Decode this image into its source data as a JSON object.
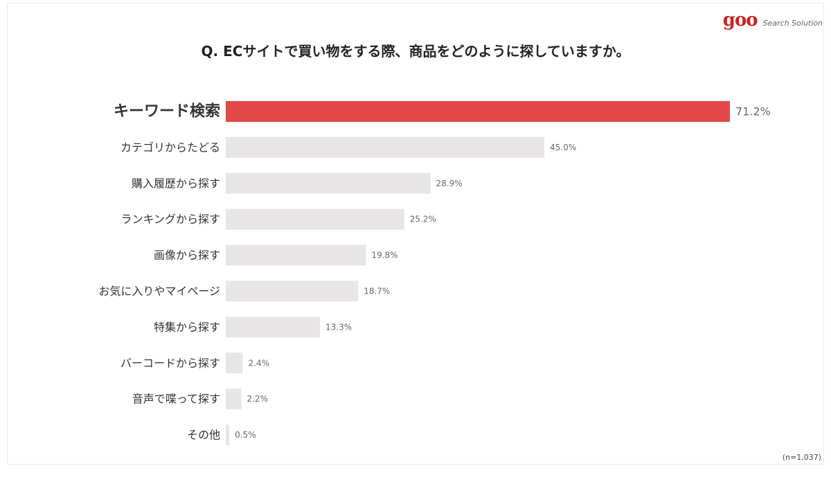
{
  "brand": {
    "logo": "goo",
    "subtitle": "Search Solution",
    "color": "#cc2222"
  },
  "chart_data": {
    "type": "bar",
    "orientation": "horizontal",
    "title": "Q. ECサイトで買い物をする際、商品をどのように探していますか。",
    "categories": [
      "キーワード検索",
      "カテゴリからたどる",
      "購入履歴から探す",
      "ランキングから探す",
      "画像から探す",
      "お気に入りやマイページ",
      "特集から探す",
      "バーコードから探す",
      "音声で喋って探す",
      "その他"
    ],
    "values": [
      71.2,
      45.0,
      28.9,
      25.2,
      19.8,
      18.7,
      13.3,
      2.4,
      2.2,
      0.5
    ],
    "value_labels": [
      "71.2%",
      "45.0%",
      "28.9%",
      "25.2%",
      "19.8%",
      "18.7%",
      "13.3%",
      "2.4%",
      "2.2%",
      "0.5%"
    ],
    "unit": "%",
    "highlight_index": 0,
    "xlim": [
      0,
      71.2
    ],
    "grid": false,
    "colors": {
      "highlight": "#e04848",
      "bar": "#e7e5e5",
      "highlight_text": "#e04848"
    },
    "note": "(n=1,037)"
  }
}
